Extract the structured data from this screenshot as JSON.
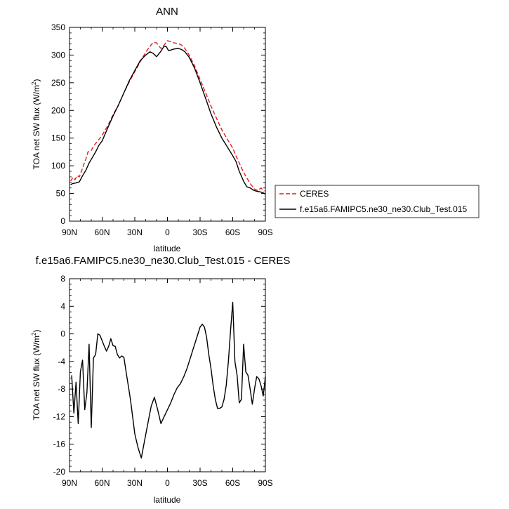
{
  "chart_data": [
    {
      "type": "line",
      "title": "ANN",
      "xlabel": "latitude",
      "ylabel": "TOA net SW flux (W/m",
      "ylabel_sup": "2",
      "ylabel_suffix": ")",
      "x_tick_labels": [
        "90N",
        "60N",
        "30N",
        "0",
        "30S",
        "60S",
        "90S"
      ],
      "x_tick_values": [
        90,
        60,
        30,
        0,
        -30,
        -60,
        -90
      ],
      "xlim": [
        90,
        -90
      ],
      "ylim": [
        0,
        350
      ],
      "y_ticks": [
        0,
        50,
        100,
        150,
        200,
        250,
        300,
        350
      ],
      "grid": false,
      "legend_position": "right",
      "series": [
        {
          "name": "CERES",
          "color": "#e41a1c",
          "style": "dashed",
          "x": [
            89,
            87,
            85,
            83,
            81,
            79,
            77,
            75,
            73,
            70,
            67,
            64,
            60,
            55,
            50,
            45,
            40,
            35,
            30,
            25,
            20,
            16,
            13,
            10,
            6,
            3,
            0,
            -3,
            -6,
            -10,
            -13,
            -16,
            -20,
            -25,
            -30,
            -35,
            -40,
            -45,
            -50,
            -55,
            -60,
            -63,
            -66,
            -70,
            -73,
            -76,
            -80,
            -83,
            -86,
            -89
          ],
          "y": [
            72,
            79,
            75,
            82,
            80,
            90,
            102,
            112,
            125,
            128,
            138,
            145,
            155,
            172,
            192,
            210,
            232,
            252,
            270,
            288,
            305,
            316,
            323,
            322,
            312,
            318,
            326,
            324,
            322,
            321,
            318,
            312,
            300,
            280,
            256,
            232,
            208,
            186,
            165,
            148,
            132,
            118,
            105,
            88,
            78,
            68,
            58,
            55,
            60,
            54
          ]
        },
        {
          "name": "f.e15a6.FAMIPC5.ne30_ne30.Club_Test.015",
          "color": "#000000",
          "style": "solid",
          "x": [
            89,
            87,
            84,
            81,
            78,
            75,
            72,
            69,
            66,
            63,
            60,
            55,
            50,
            45,
            40,
            35,
            30,
            25,
            20,
            16,
            13,
            10,
            6,
            3,
            1,
            -1,
            -3,
            -6,
            -10,
            -13,
            -16,
            -20,
            -25,
            -30,
            -35,
            -40,
            -45,
            -50,
            -55,
            -60,
            -63,
            -66,
            -70,
            -73,
            -76,
            -79,
            -82,
            -85,
            -88,
            -90
          ],
          "y": [
            66,
            68,
            69,
            71,
            82,
            92,
            105,
            115,
            125,
            137,
            145,
            168,
            190,
            210,
            232,
            254,
            272,
            290,
            300,
            306,
            303,
            297,
            307,
            316,
            315,
            308,
            309,
            311,
            312,
            310,
            306,
            296,
            276,
            250,
            222,
            194,
            170,
            150,
            134,
            118,
            108,
            90,
            72,
            62,
            60,
            56,
            54,
            53,
            51,
            49
          ]
        }
      ]
    },
    {
      "type": "line",
      "title": "f.e15a6.FAMIPC5.ne30_ne30.Club_Test.015 - CERES",
      "xlabel": "latitude",
      "ylabel": "TOA net SW flux (W/m",
      "ylabel_sup": "2",
      "ylabel_suffix": ")",
      "x_tick_labels": [
        "90N",
        "60N",
        "30N",
        "0",
        "30S",
        "60S",
        "90S"
      ],
      "x_tick_values": [
        90,
        60,
        30,
        0,
        -30,
        -60,
        -90
      ],
      "xlim": [
        90,
        -90
      ],
      "ylim": [
        -20,
        8
      ],
      "y_ticks": [
        -20,
        -16,
        -12,
        -8,
        -4,
        0,
        4,
        8
      ],
      "grid": false,
      "series": [
        {
          "color": "#000000",
          "style": "solid",
          "x": [
            88,
            86,
            84,
            82,
            80,
            78,
            76,
            74,
            72,
            70,
            68,
            66,
            64,
            62,
            60,
            58,
            56,
            54,
            52,
            50,
            48,
            46,
            44,
            42,
            40,
            38,
            36,
            34,
            32,
            30,
            27,
            24,
            21,
            18,
            15,
            12,
            9,
            6,
            3,
            0,
            -3,
            -6,
            -9,
            -12,
            -15,
            -18,
            -21,
            -24,
            -27,
            -30,
            -32,
            -34,
            -36,
            -38,
            -40,
            -42,
            -44,
            -46,
            -48,
            -50,
            -52,
            -54,
            -56,
            -58,
            -60,
            -62,
            -64,
            -66,
            -68,
            -70,
            -72,
            -74,
            -76,
            -78,
            -80,
            -82,
            -84,
            -86,
            -88,
            -90
          ],
          "y": [
            -6.0,
            -11.5,
            -7.0,
            -13.0,
            -5.5,
            -3.8,
            -11.0,
            -8.5,
            -1.5,
            -13.6,
            -3.5,
            -3.0,
            0.0,
            -0.2,
            -1.0,
            -1.8,
            -2.5,
            -1.8,
            -0.7,
            -1.7,
            -1.8,
            -3.0,
            -3.5,
            -3.2,
            -3.4,
            -5.5,
            -7.5,
            -9.5,
            -12.0,
            -14.5,
            -16.5,
            -18.0,
            -15.5,
            -13.0,
            -10.5,
            -9.2,
            -11.0,
            -13.0,
            -12.0,
            -11.0,
            -10.0,
            -8.8,
            -7.8,
            -7.2,
            -6.2,
            -5.0,
            -3.5,
            -2.0,
            -0.5,
            1.0,
            1.4,
            1.0,
            -0.5,
            -3.0,
            -5.0,
            -7.5,
            -9.5,
            -10.8,
            -10.8,
            -10.6,
            -9.5,
            -7.5,
            -4.0,
            0.5,
            4.6,
            -4.0,
            -6.0,
            -10.0,
            -9.5,
            -1.5,
            -5.5,
            -6.0,
            -8.0,
            -10.2,
            -8.0,
            -6.2,
            -6.5,
            -7.5,
            -9.0,
            -6.2
          ]
        }
      ]
    }
  ]
}
